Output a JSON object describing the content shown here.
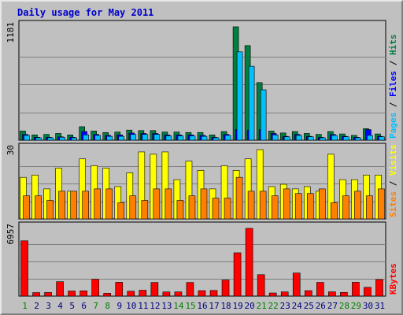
{
  "title": "Daily usage for May 2011",
  "colors": {
    "background": "#c0c0c0",
    "hits": "#008040",
    "files": "#0000ff",
    "pages": "#00c0ff",
    "visits": "#ffff00",
    "sites": "#ff8000",
    "kbytes": "#ff0000",
    "weekend_label": "#008000",
    "weekday_label": "#000080"
  },
  "chart_data": [
    {
      "type": "bar",
      "panel": "top",
      "y_max_label": "1181",
      "ylim": [
        0,
        1181
      ],
      "legend": [
        {
          "text": "Pages",
          "color": "#00c0ff"
        },
        {
          "text": " / ",
          "color": "#000000"
        },
        {
          "text": "Files",
          "color": "#0000ff"
        },
        {
          "text": " / ",
          "color": "#000000"
        },
        {
          "text": "Hits",
          "color": "#008040"
        }
      ],
      "categories": [
        "1",
        "2",
        "3",
        "4",
        "5",
        "6",
        "7",
        "8",
        "9",
        "10",
        "11",
        "12",
        "13",
        "14",
        "15",
        "16",
        "17",
        "18",
        "19",
        "20",
        "21",
        "22",
        "23",
        "24",
        "25",
        "26",
        "27",
        "28",
        "29",
        "30",
        "31"
      ],
      "series": [
        {
          "name": "Hits",
          "values": [
            95,
            55,
            60,
            70,
            55,
            140,
            95,
            80,
            85,
            105,
            100,
            100,
            85,
            85,
            80,
            80,
            55,
            90,
            1181,
            985,
            600,
            95,
            75,
            90,
            70,
            60,
            90,
            65,
            50,
            120,
            65
          ]
        },
        {
          "name": "Files",
          "values": [
            60,
            30,
            30,
            35,
            30,
            90,
            60,
            50,
            55,
            75,
            70,
            70,
            55,
            55,
            55,
            50,
            30,
            60,
            110,
            105,
            110,
            70,
            40,
            60,
            40,
            30,
            60,
            40,
            30,
            110,
            40
          ]
        },
        {
          "name": "Pages",
          "values": [
            50,
            25,
            25,
            30,
            25,
            55,
            50,
            40,
            40,
            60,
            60,
            60,
            45,
            45,
            45,
            40,
            25,
            50,
            920,
            770,
            525,
            55,
            35,
            50,
            35,
            25,
            50,
            35,
            25,
            50,
            35
          ]
        }
      ]
    },
    {
      "type": "bar",
      "panel": "middle",
      "y_max_label": "30",
      "ylim": [
        0,
        30
      ],
      "legend": [
        {
          "text": "Sites",
          "color": "#ff8000"
        },
        {
          "text": " / ",
          "color": "#000000"
        },
        {
          "text": "Visits",
          "color": "#ffff00"
        }
      ],
      "categories": [
        "1",
        "2",
        "3",
        "4",
        "5",
        "6",
        "7",
        "8",
        "9",
        "10",
        "11",
        "12",
        "13",
        "14",
        "15",
        "16",
        "17",
        "18",
        "19",
        "20",
        "21",
        "22",
        "23",
        "24",
        "25",
        "26",
        "27",
        "28",
        "29",
        "30",
        "31"
      ],
      "series": [
        {
          "name": "Visits",
          "values": [
            18,
            19,
            13,
            22,
            12,
            26,
            23,
            22,
            14,
            20,
            29,
            28,
            29,
            17,
            25,
            21,
            13,
            23,
            21,
            26,
            30,
            14,
            15,
            13,
            14,
            12,
            28,
            17,
            17,
            19,
            19
          ]
        },
        {
          "name": "Sites",
          "values": [
            10,
            10,
            8,
            12,
            12,
            12,
            13,
            13,
            7,
            10,
            8,
            13,
            13,
            8,
            10,
            13,
            9,
            9,
            18,
            12,
            12,
            10,
            13,
            11,
            11,
            13,
            7,
            10,
            12,
            10,
            13
          ]
        }
      ]
    },
    {
      "type": "bar",
      "panel": "bottom",
      "y_max_label": "6957",
      "ylim": [
        0,
        6957
      ],
      "legend": [
        {
          "text": "KBytes",
          "color": "#ff0000"
        }
      ],
      "categories": [
        "1",
        "2",
        "3",
        "4",
        "5",
        "6",
        "7",
        "8",
        "9",
        "10",
        "11",
        "12",
        "13",
        "14",
        "15",
        "16",
        "17",
        "18",
        "19",
        "20",
        "21",
        "22",
        "23",
        "24",
        "25",
        "26",
        "27",
        "28",
        "29",
        "30",
        "31"
      ],
      "series": [
        {
          "name": "KBytes",
          "values": [
            5680,
            360,
            370,
            1480,
            520,
            540,
            1730,
            290,
            1420,
            500,
            600,
            1400,
            430,
            430,
            1400,
            560,
            580,
            1650,
            4450,
            6957,
            2200,
            320,
            430,
            2370,
            560,
            1410,
            440,
            380,
            1420,
            900,
            1700
          ]
        }
      ],
      "x_labels": [
        {
          "day": "1",
          "weekend": true
        },
        {
          "day": "2",
          "weekend": false
        },
        {
          "day": "3",
          "weekend": false
        },
        {
          "day": "4",
          "weekend": false
        },
        {
          "day": "5",
          "weekend": false
        },
        {
          "day": "6",
          "weekend": false
        },
        {
          "day": "7",
          "weekend": true
        },
        {
          "day": "8",
          "weekend": true
        },
        {
          "day": "9",
          "weekend": false
        },
        {
          "day": "10",
          "weekend": false
        },
        {
          "day": "11",
          "weekend": false
        },
        {
          "day": "12",
          "weekend": false
        },
        {
          "day": "13",
          "weekend": false
        },
        {
          "day": "14",
          "weekend": true
        },
        {
          "day": "15",
          "weekend": true
        },
        {
          "day": "16",
          "weekend": false
        },
        {
          "day": "17",
          "weekend": false
        },
        {
          "day": "18",
          "weekend": false
        },
        {
          "day": "19",
          "weekend": false
        },
        {
          "day": "20",
          "weekend": false
        },
        {
          "day": "21",
          "weekend": true
        },
        {
          "day": "22",
          "weekend": true
        },
        {
          "day": "23",
          "weekend": false
        },
        {
          "day": "24",
          "weekend": false
        },
        {
          "day": "25",
          "weekend": false
        },
        {
          "day": "26",
          "weekend": false
        },
        {
          "day": "27",
          "weekend": false
        },
        {
          "day": "28",
          "weekend": true
        },
        {
          "day": "29",
          "weekend": true
        },
        {
          "day": "30",
          "weekend": false
        },
        {
          "day": "31",
          "weekend": false
        }
      ]
    }
  ]
}
